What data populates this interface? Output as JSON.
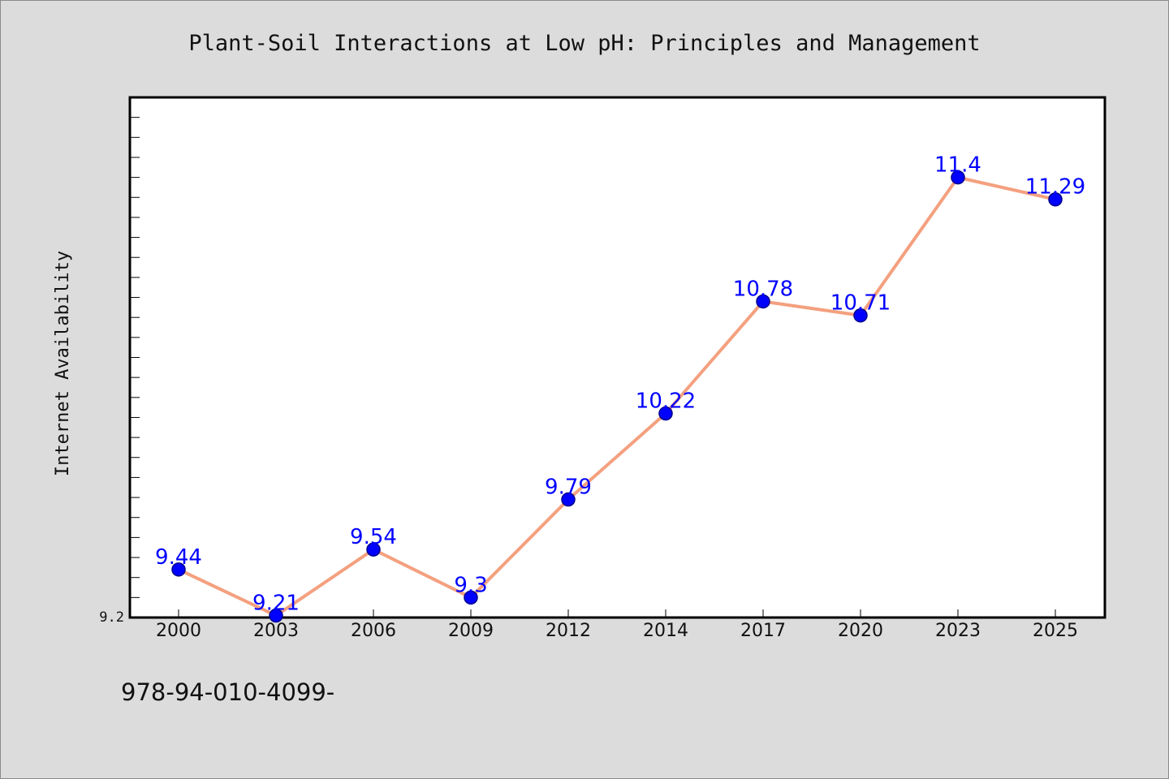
{
  "chart_data": {
    "type": "line",
    "title": "Plant-Soil Interactions at Low pH: Principles and Management",
    "xlabel": "",
    "ylabel": "Internet Availability",
    "categories": [
      "2000",
      "2003",
      "2006",
      "2009",
      "2012",
      "2014",
      "2017",
      "2020",
      "2023",
      "2025"
    ],
    "series": [
      {
        "values": [
          9.44,
          9.21,
          9.54,
          9.3,
          9.79,
          10.22,
          10.78,
          10.71,
          11.4,
          11.29
        ],
        "labels": [
          "9.44",
          "9.21",
          "9.54",
          "9.3",
          "9.79",
          "10.22",
          "10.78",
          "10.71",
          "11.4",
          "11.29"
        ]
      }
    ],
    "ylim": [
      9.2,
      11.8
    ],
    "yticks_labeled": [
      "9.2"
    ],
    "grid": false,
    "legend": "none",
    "colors": {
      "line": "#f4a07f",
      "marker_fill": "#0000ff",
      "marker_edge": "#00008b",
      "data_label": "#0000ff",
      "plot_background": "#ffffff",
      "page_background": "#dcdcdc"
    }
  },
  "footer": {
    "isbn": "978-94-010-4099-"
  }
}
